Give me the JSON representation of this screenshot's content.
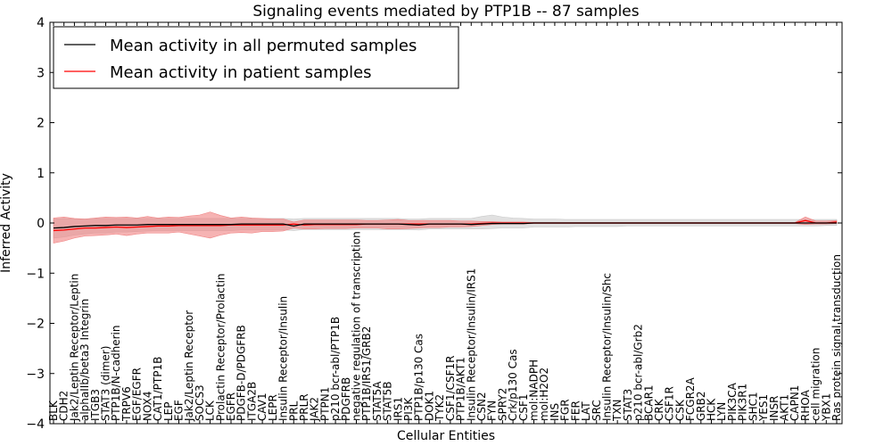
{
  "chart_data": {
    "type": "line",
    "title": "Signaling events mediated by PTP1B -- 87 samples",
    "xlabel": "Cellular Entities",
    "ylabel": "Inferred Activity",
    "ylim": [
      -4,
      4
    ],
    "yticks": [
      "4",
      "3",
      "2",
      "1",
      "0",
      "−1",
      "−2",
      "−3",
      "−4"
    ],
    "ytick_values": [
      4,
      3,
      2,
      1,
      0,
      -1,
      -2,
      -3,
      -4
    ],
    "legend": {
      "placement": "top-left",
      "entries": [
        {
          "label": "Mean activity in all permuted samples",
          "color": "#000000"
        },
        {
          "label": "Mean activity in patient samples",
          "color": "#ff0000"
        }
      ]
    },
    "categories": [
      "BLK",
      "CDH2",
      "Jak2/Leptin Receptor/Leptin",
      "alphaIIb/beta3 Integrin",
      "ITGB3",
      "STAT3 (dimer)",
      "PTP1B/N-cadherin",
      "TRPV6",
      "EGF/EGFR",
      "NOX4",
      "CAT1/PTP1B",
      "LEP",
      "EGF",
      "Jak2/Leptin Receptor",
      "SOCS3",
      "LCK",
      "Prolactin Receptor/Prolactin",
      "EGFR",
      "PDGFB-D/PDGFRB",
      "ITGA2B",
      "CAV1",
      "LEPR",
      "Insulin Receptor/Insulin",
      "PRL",
      "PRLR",
      "JAK2",
      "PTPN1",
      "p210 bcr-abl/PTP1B",
      "PDGFRB",
      "negative regulation of transcription",
      "PTP1B/IRS1/GRB2",
      "STAT5A",
      "STAT5B",
      "IRS1",
      "PI3K",
      "PTP1B/p130 Cas",
      "DOK1",
      "TYK2",
      "CSF1/CSF1R",
      "PTP1B/AKT1",
      "Insulin Receptor/Insulin/IRS1",
      "CSN2",
      "FYN",
      "SPRY2",
      "Crk/p130 Cas",
      "CSF1",
      "mol:NADPH",
      "mol:H2O2",
      "INS",
      "FGR",
      "FER",
      "LAT",
      "SRC",
      "Insulin Receptor/Insulin/Shc",
      "TXN",
      "STAT3",
      "p210 bcr-abl/Grb2",
      "BCAR1",
      "CRK",
      "CSF1R",
      "CSK",
      "FCGR2A",
      "GRB2",
      "HCK",
      "LYN",
      "PIK3CA",
      "PIK3R1",
      "SHC1",
      "YES1",
      "INSR",
      "AKT1",
      "CAPN1",
      "RHOA",
      "cell migration",
      "YBX1",
      "Ras protein signal transduction"
    ],
    "series": [
      {
        "name": "Mean activity in all permuted samples",
        "color": "#000000",
        "band_color": "#c8c8c8",
        "values": [
          -0.1,
          -0.09,
          -0.07,
          -0.06,
          -0.05,
          -0.05,
          -0.04,
          -0.04,
          -0.04,
          -0.03,
          -0.03,
          -0.03,
          -0.03,
          -0.03,
          -0.03,
          -0.03,
          -0.03,
          -0.03,
          -0.02,
          -0.02,
          -0.02,
          -0.02,
          -0.02,
          -0.06,
          -0.02,
          -0.02,
          -0.02,
          -0.02,
          -0.02,
          -0.02,
          -0.02,
          -0.02,
          -0.02,
          -0.02,
          -0.03,
          -0.04,
          -0.02,
          -0.02,
          -0.02,
          -0.02,
          -0.03,
          -0.02,
          -0.01,
          -0.01,
          -0.01,
          -0.01,
          0.0,
          0.0,
          0.0,
          0.0,
          0.0,
          0.0,
          0.0,
          0.0,
          0.0,
          0.0,
          0.0,
          0.0,
          0.0,
          0.0,
          0.0,
          0.0,
          0.0,
          0.0,
          0.0,
          0.0,
          0.0,
          0.0,
          0.0,
          0.0,
          0.0,
          0.0,
          0.0,
          0.0,
          0.0,
          0.0
        ],
        "band_low": [
          -0.3,
          -0.28,
          -0.24,
          -0.22,
          -0.2,
          -0.2,
          -0.18,
          -0.18,
          -0.17,
          -0.16,
          -0.15,
          -0.15,
          -0.15,
          -0.15,
          -0.15,
          -0.15,
          -0.15,
          -0.15,
          -0.14,
          -0.14,
          -0.14,
          -0.14,
          -0.14,
          -0.15,
          -0.13,
          -0.13,
          -0.13,
          -0.13,
          -0.13,
          -0.13,
          -0.13,
          -0.13,
          -0.13,
          -0.13,
          -0.13,
          -0.14,
          -0.12,
          -0.12,
          -0.12,
          -0.12,
          -0.12,
          -0.12,
          -0.11,
          -0.1,
          -0.1,
          -0.1,
          -0.08,
          -0.08,
          -0.08,
          -0.08,
          -0.07,
          -0.07,
          -0.07,
          -0.07,
          -0.07,
          -0.06,
          -0.06,
          -0.06,
          -0.06,
          -0.06,
          -0.06,
          -0.06,
          -0.06,
          -0.06,
          -0.06,
          -0.06,
          -0.06,
          -0.06,
          -0.06,
          -0.06,
          -0.06,
          -0.06,
          -0.06,
          -0.06,
          -0.05,
          -0.05
        ],
        "band_high": [
          0.08,
          0.09,
          0.08,
          0.08,
          0.09,
          0.09,
          0.09,
          0.09,
          0.09,
          0.09,
          0.09,
          0.09,
          0.09,
          0.09,
          0.09,
          0.09,
          0.09,
          0.09,
          0.09,
          0.09,
          0.09,
          0.09,
          0.09,
          0.08,
          0.09,
          0.09,
          0.09,
          0.09,
          0.09,
          0.09,
          0.09,
          0.09,
          0.09,
          0.09,
          0.08,
          0.08,
          0.09,
          0.09,
          0.09,
          0.09,
          0.09,
          0.13,
          0.16,
          0.12,
          0.1,
          0.09,
          0.08,
          0.08,
          0.08,
          0.07,
          0.07,
          0.07,
          0.07,
          0.07,
          0.07,
          0.07,
          0.07,
          0.07,
          0.07,
          0.07,
          0.07,
          0.07,
          0.07,
          0.07,
          0.07,
          0.07,
          0.07,
          0.07,
          0.07,
          0.07,
          0.07,
          0.07,
          0.07,
          0.07,
          0.07,
          0.07
        ]
      },
      {
        "name": "Mean activity in patient samples",
        "color": "#ff0000",
        "band_color": "#f08080",
        "values": [
          -0.15,
          -0.14,
          -0.12,
          -0.1,
          -0.1,
          -0.09,
          -0.08,
          -0.09,
          -0.08,
          -0.07,
          -0.06,
          -0.06,
          -0.05,
          -0.05,
          -0.05,
          -0.05,
          -0.05,
          -0.04,
          -0.04,
          -0.04,
          -0.04,
          -0.04,
          -0.04,
          -0.02,
          -0.04,
          -0.03,
          -0.03,
          -0.03,
          -0.03,
          -0.03,
          -0.02,
          -0.02,
          -0.02,
          -0.02,
          -0.02,
          -0.02,
          -0.02,
          -0.02,
          -0.02,
          -0.02,
          -0.02,
          -0.01,
          0.0,
          0.0,
          0.0,
          0.0,
          0.0,
          0.0,
          0.0,
          0.0,
          0.0,
          0.0,
          0.0,
          0.0,
          0.0,
          0.0,
          0.0,
          0.0,
          0.0,
          0.0,
          0.0,
          0.0,
          0.0,
          0.0,
          0.0,
          0.0,
          0.0,
          0.0,
          0.0,
          0.0,
          0.0,
          0.0,
          0.05,
          0.0,
          0.0,
          0.02
        ],
        "band_low": [
          -0.4,
          -0.36,
          -0.3,
          -0.26,
          -0.25,
          -0.24,
          -0.22,
          -0.25,
          -0.22,
          -0.2,
          -0.2,
          -0.2,
          -0.18,
          -0.22,
          -0.26,
          -0.3,
          -0.24,
          -0.2,
          -0.19,
          -0.2,
          -0.17,
          -0.17,
          -0.16,
          -0.1,
          -0.12,
          -0.12,
          -0.11,
          -0.11,
          -0.11,
          -0.1,
          -0.1,
          -0.1,
          -0.12,
          -0.12,
          -0.11,
          -0.1,
          -0.09,
          -0.09,
          -0.08,
          -0.08,
          -0.07,
          -0.05,
          -0.03,
          -0.02,
          -0.02,
          -0.02,
          -0.01,
          -0.01,
          -0.01,
          -0.01,
          -0.01,
          -0.01,
          -0.01,
          -0.01,
          -0.01,
          -0.01,
          -0.01,
          -0.01,
          -0.01,
          -0.01,
          -0.01,
          -0.01,
          -0.01,
          -0.01,
          -0.01,
          -0.01,
          -0.01,
          -0.01,
          -0.01,
          -0.01,
          -0.01,
          -0.01,
          -0.03,
          -0.02,
          -0.02,
          -0.01
        ],
        "band_high": [
          0.1,
          0.12,
          0.09,
          0.08,
          0.1,
          0.12,
          0.11,
          0.12,
          0.1,
          0.13,
          0.1,
          0.12,
          0.11,
          0.14,
          0.16,
          0.22,
          0.15,
          0.1,
          0.12,
          0.1,
          0.09,
          0.08,
          0.08,
          0.02,
          0.06,
          0.06,
          0.06,
          0.06,
          0.06,
          0.06,
          0.05,
          0.05,
          0.06,
          0.07,
          0.05,
          0.05,
          0.05,
          0.05,
          0.05,
          0.04,
          0.04,
          0.03,
          0.03,
          0.02,
          0.02,
          0.02,
          0.01,
          0.01,
          0.01,
          0.01,
          0.01,
          0.01,
          0.01,
          0.01,
          0.01,
          0.01,
          0.01,
          0.01,
          0.01,
          0.01,
          0.01,
          0.01,
          0.01,
          0.01,
          0.01,
          0.01,
          0.01,
          0.01,
          0.01,
          0.01,
          0.01,
          0.01,
          0.12,
          0.04,
          0.04,
          0.05
        ]
      }
    ]
  }
}
